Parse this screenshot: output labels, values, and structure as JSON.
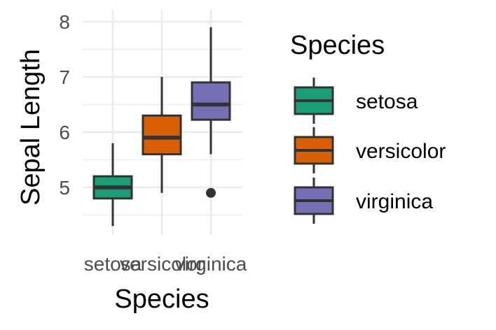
{
  "chart_data": {
    "type": "box",
    "xlabel": "Species",
    "ylabel": "Sepal Length",
    "ylim": [
      4.2,
      8.1
    ],
    "yticks": [
      "5",
      "6",
      "7",
      "8"
    ],
    "grid": true,
    "legend_title": "Species",
    "legend_position": "right",
    "categories": [
      "setosa",
      "versicolor",
      "virginica"
    ],
    "colors": [
      "#1b9e77",
      "#d95f02",
      "#7570b3"
    ],
    "boxes": [
      {
        "name": "setosa",
        "min": 4.3,
        "q1": 4.8,
        "median": 5.0,
        "q3": 5.2,
        "max": 5.8,
        "outliers": []
      },
      {
        "name": "versicolor",
        "min": 4.9,
        "q1": 5.6,
        "median": 5.9,
        "q3": 6.3,
        "max": 7.0,
        "outliers": []
      },
      {
        "name": "virginica",
        "min": 5.6,
        "q1": 6.225,
        "median": 6.5,
        "q3": 6.9,
        "max": 7.9,
        "outliers": [
          4.9
        ]
      }
    ]
  }
}
